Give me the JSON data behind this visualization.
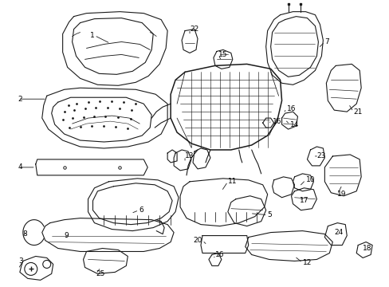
{
  "background_color": "#ffffff",
  "line_color": "#1a1a1a",
  "text_color": "#000000",
  "font_size": 6.5,
  "fig_width": 4.89,
  "fig_height": 3.6,
  "dpi": 100
}
